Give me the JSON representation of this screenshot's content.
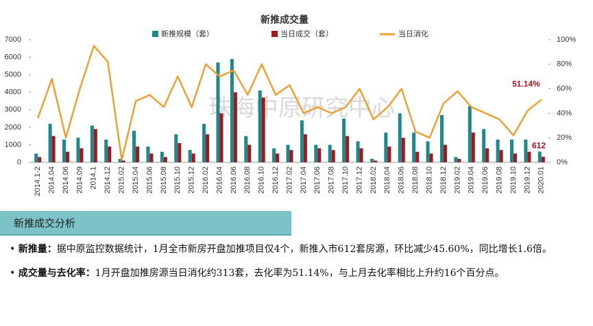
{
  "chart_data": {
    "type": "bar-line",
    "title": "新推成交量",
    "watermark": "珠海中原研究中心",
    "categories": [
      "2014.1-2",
      "2014.04",
      "2014.06",
      "2014.09",
      "2014.1",
      "2014.12",
      "2015.02",
      "2015.04",
      "2015.06",
      "2015.08",
      "2015.10",
      "2015.12",
      "2016.02",
      "2016.04",
      "2016.06",
      "2016.08",
      "2016.10",
      "2016.12",
      "2017.02",
      "2017.04",
      "2017.06",
      "2017.08",
      "2017.10",
      "2017.12",
      "2018.02",
      "2018.04",
      "2018.06",
      "2018.08",
      "2018.10",
      "2018.12",
      "2019.02",
      "2019.04",
      "2019.06",
      "2019.08",
      "2019.10",
      "2019.12",
      "2020.01"
    ],
    "series": [
      {
        "name": "新推规模（套）",
        "color": "#1c8a8c",
        "type": "bar",
        "values": [
          500,
          2200,
          1300,
          1400,
          2100,
          1300,
          200,
          1800,
          900,
          600,
          1600,
          700,
          2200,
          5700,
          5900,
          1500,
          4100,
          800,
          1000,
          2400,
          1000,
          1000,
          2500,
          1200,
          200,
          1700,
          2800,
          1700,
          1200,
          2700,
          300,
          3200,
          1900,
          1300,
          1300,
          1300,
          612
        ]
      },
      {
        "name": "当日成交（套）",
        "color": "#a3171d",
        "type": "bar",
        "values": [
          300,
          1500,
          600,
          800,
          1900,
          900,
          100,
          900,
          500,
          300,
          1100,
          500,
          1600,
          2800,
          4000,
          1000,
          3700,
          500,
          700,
          1600,
          800,
          700,
          1500,
          800,
          100,
          900,
          1400,
          600,
          500,
          1000,
          200,
          1700,
          800,
          700,
          500,
          600,
          313
        ]
      },
      {
        "name": "当日消化",
        "color": "#f0a030",
        "type": "line",
        "axis": "y2",
        "values": [
          36,
          68,
          20,
          60,
          95,
          82,
          2,
          50,
          55,
          45,
          70,
          45,
          80,
          70,
          75,
          55,
          80,
          55,
          63,
          40,
          45,
          40,
          45,
          60,
          35,
          45,
          60,
          25,
          20,
          48,
          58,
          45,
          40,
          35,
          22,
          42,
          51.14
        ],
        "value_labels": [
          null,
          null,
          null,
          null,
          null,
          null,
          null,
          null,
          null,
          null,
          null,
          null,
          null,
          null,
          null,
          null,
          null,
          null,
          null,
          null,
          null,
          null,
          null,
          null,
          null,
          null,
          null,
          null,
          null,
          null,
          null,
          null,
          null,
          null,
          null,
          null,
          "51.14%"
        ]
      }
    ],
    "ylim": [
      0,
      7000
    ],
    "yticks": [
      0,
      1000,
      2000,
      3000,
      4000,
      5000,
      6000,
      7000
    ],
    "y2lim": [
      0,
      100
    ],
    "y2ticks": [
      {
        "value": 0,
        "label": "0%"
      },
      {
        "value": 20,
        "label": "20%"
      },
      {
        "value": 40,
        "label": "40%"
      },
      {
        "value": 60,
        "label": "60%"
      },
      {
        "value": 80,
        "label": "80%"
      },
      {
        "value": 100,
        "label": "100%"
      }
    ],
    "grid": false,
    "legend": "top"
  },
  "analysis": {
    "section_title": "新推成交分析",
    "items": [
      {
        "label": "新推量：",
        "text": "据中原监控数据统计，1月全市新房开盘加推项目仅4个，新推入市612套房源，环比减少45.60%，同比增长1.6倍。"
      },
      {
        "label": "成交量与去化率：",
        "text": "1月开盘加推房源当日消化约313套，去化率为51.14%，与上月去化率相比上升约16个百分点。"
      }
    ]
  }
}
